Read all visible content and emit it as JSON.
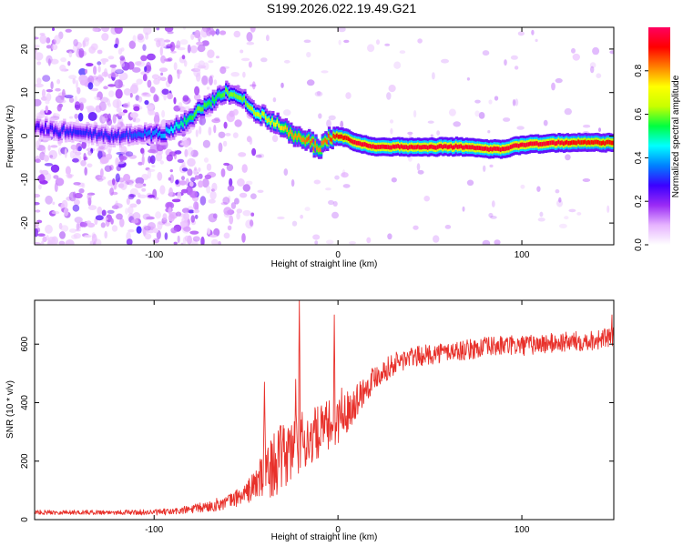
{
  "figure_title": "S199.2026.022.19.49.G21",
  "colors": {
    "background": "#ffffff",
    "axis": "#000000",
    "snr_line": "#e8312b",
    "ridge_core": "#e8112b",
    "scatter_purple": "#6a1bd8"
  },
  "chart_data": [
    {
      "id": "spectrogram",
      "type": "heatmap",
      "title": "S199.2026.022.19.49.G21",
      "xlabel": "Height of straight line (km)",
      "ylabel": "Frequency (Hz)",
      "xlim": [
        -165,
        150
      ],
      "ylim": [
        -25,
        25
      ],
      "xticks": [
        -100,
        0,
        100
      ],
      "yticks": [
        -20,
        -10,
        0,
        10,
        20
      ],
      "xtick_labels": [
        "-100",
        "0",
        "100"
      ],
      "ytick_labels": [
        "-20",
        "-10",
        "0",
        "10",
        "20"
      ],
      "colorbar": {
        "label": "Normalized spectral amplitude",
        "range": [
          0,
          1
        ],
        "ticks": [
          0.0,
          0.2,
          0.4,
          0.6,
          0.8
        ],
        "tick_labels": [
          "0.0",
          "0.2",
          "0.4",
          "0.6",
          "0.8"
        ],
        "colormap": [
          "#ffffff",
          "#e6b3ff",
          "#9a2bf5",
          "#3b00ff",
          "#0080ff",
          "#00ffff",
          "#00ff40",
          "#c8ff00",
          "#ffff00",
          "#ff8000",
          "#ff0000",
          "#ff0060"
        ]
      },
      "ridge": {
        "x": [
          -165,
          -150,
          -135,
          -120,
          -105,
          -95,
          -90,
          -85,
          -80,
          -75,
          -70,
          -65,
          -60,
          -55,
          -50,
          -45,
          -40,
          -35,
          -30,
          -25,
          -20,
          -15,
          -10,
          -5,
          0,
          5,
          10,
          20,
          30,
          40,
          50,
          60,
          70,
          80,
          85,
          90,
          95,
          100,
          110,
          120,
          130,
          140,
          150
        ],
        "y": [
          2,
          1,
          0.5,
          0,
          0.5,
          1,
          1.5,
          2.5,
          4,
          6,
          7.5,
          9,
          10,
          9,
          8,
          5.5,
          4.5,
          3,
          1.5,
          0.5,
          -0.5,
          -1,
          -3,
          -1,
          0,
          -0.5,
          -1.5,
          -2.5,
          -2.5,
          -2.5,
          -2.5,
          -2.5,
          -2.5,
          -3,
          -3,
          -3,
          -2.5,
          -2,
          -1.8,
          -1.6,
          -1.5,
          -1.5,
          -1.5
        ],
        "amplitude": [
          0.25,
          0.3,
          0.3,
          0.3,
          0.35,
          0.4,
          0.45,
          0.5,
          0.55,
          0.6,
          0.55,
          0.55,
          0.6,
          0.6,
          0.6,
          0.65,
          0.65,
          0.7,
          0.75,
          0.8,
          0.8,
          0.85,
          0.8,
          0.85,
          0.9,
          0.9,
          0.95,
          0.95,
          0.95,
          0.95,
          0.95,
          0.95,
          0.95,
          0.95,
          0.95,
          0.95,
          0.95,
          0.95,
          0.95,
          0.95,
          0.9,
          0.9,
          0.9
        ]
      },
      "noise_region": {
        "x_range": [
          -165,
          -55
        ],
        "density": "high",
        "amplitude": [
          0.05,
          0.3
        ]
      }
    },
    {
      "id": "snr",
      "type": "line",
      "title": "",
      "xlabel": "Height of straight line (km)",
      "ylabel": "SNR (10 * v/v)",
      "xlim": [
        -165,
        150
      ],
      "ylim": [
        0,
        750
      ],
      "xticks": [
        -100,
        0,
        100
      ],
      "yticks": [
        0,
        200,
        400,
        600
      ],
      "xtick_labels": [
        "-100",
        "0",
        "100"
      ],
      "ytick_labels": [
        "0",
        "200",
        "400",
        "600"
      ],
      "envelope": {
        "x": [
          -165,
          -140,
          -120,
          -100,
          -90,
          -80,
          -70,
          -60,
          -50,
          -45,
          -40,
          -35,
          -30,
          -25,
          -20,
          -15,
          -10,
          -5,
          0,
          5,
          10,
          15,
          20,
          25,
          30,
          35,
          40,
          50,
          60,
          70,
          80,
          90,
          100,
          110,
          120,
          130,
          140,
          150
        ],
        "y": [
          25,
          25,
          25,
          25,
          27,
          35,
          45,
          60,
          90,
          120,
          160,
          190,
          210,
          240,
          260,
          280,
          300,
          320,
          340,
          370,
          410,
          450,
          490,
          510,
          530,
          545,
          555,
          565,
          575,
          580,
          590,
          595,
          595,
          600,
          605,
          610,
          615,
          625
        ],
        "noise": [
          8,
          8,
          8,
          10,
          12,
          15,
          20,
          25,
          35,
          60,
          90,
          110,
          120,
          120,
          110,
          100,
          90,
          90,
          80,
          70,
          60,
          50,
          45,
          40,
          40,
          40,
          35,
          35,
          35,
          35,
          35,
          35,
          35,
          35,
          35,
          35,
          35,
          35
        ]
      },
      "spikes": [
        {
          "x": -21,
          "y": 750
        },
        {
          "x": -23,
          "y": 480
        },
        {
          "x": -2,
          "y": 700
        },
        {
          "x": 2,
          "y": 450
        },
        {
          "x": -40,
          "y": 470
        },
        {
          "x": 149,
          "y": 700
        }
      ]
    }
  ]
}
